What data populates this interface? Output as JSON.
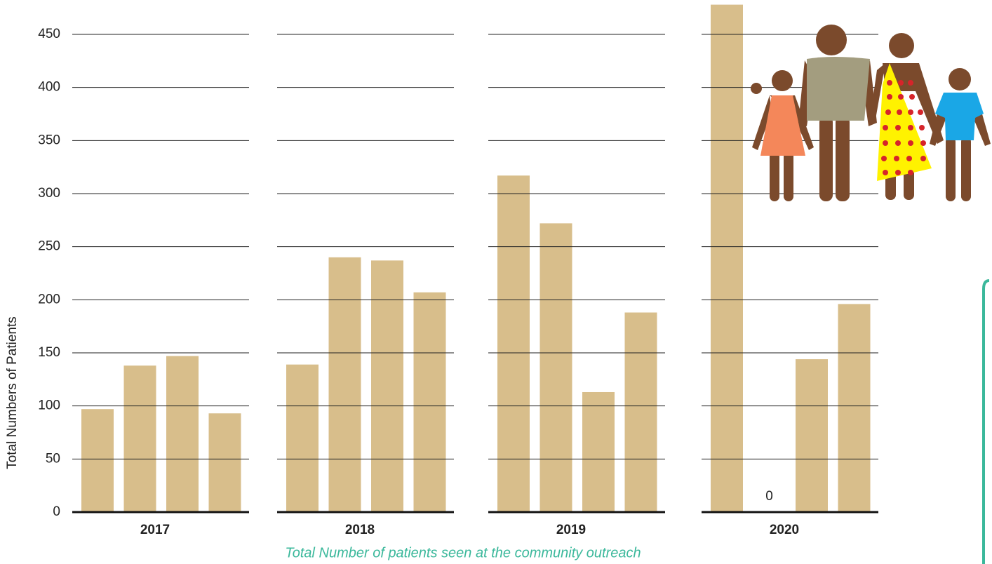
{
  "chart_data": {
    "type": "bar",
    "y_label": "Total Numbers of Patients",
    "caption": "Total Number of patients seen at the community outreach",
    "categories": [
      "2017",
      "2018",
      "2019",
      "2020"
    ],
    "series": [
      {
        "color": "#d8be8b",
        "values": [
          97,
          139,
          317,
          478
        ]
      },
      {
        "color": "#d8be8b",
        "values": [
          138,
          240,
          272,
          0
        ]
      },
      {
        "color": "#d8be8b",
        "values": [
          147,
          237,
          113,
          144
        ]
      },
      {
        "color": "#d8be8b",
        "values": [
          93,
          207,
          188,
          196
        ]
      }
    ],
    "ylim": [
      0,
      480
    ],
    "yticks": [
      0,
      50,
      100,
      150,
      200,
      250,
      300,
      350,
      400,
      450
    ],
    "grid": true
  }
}
